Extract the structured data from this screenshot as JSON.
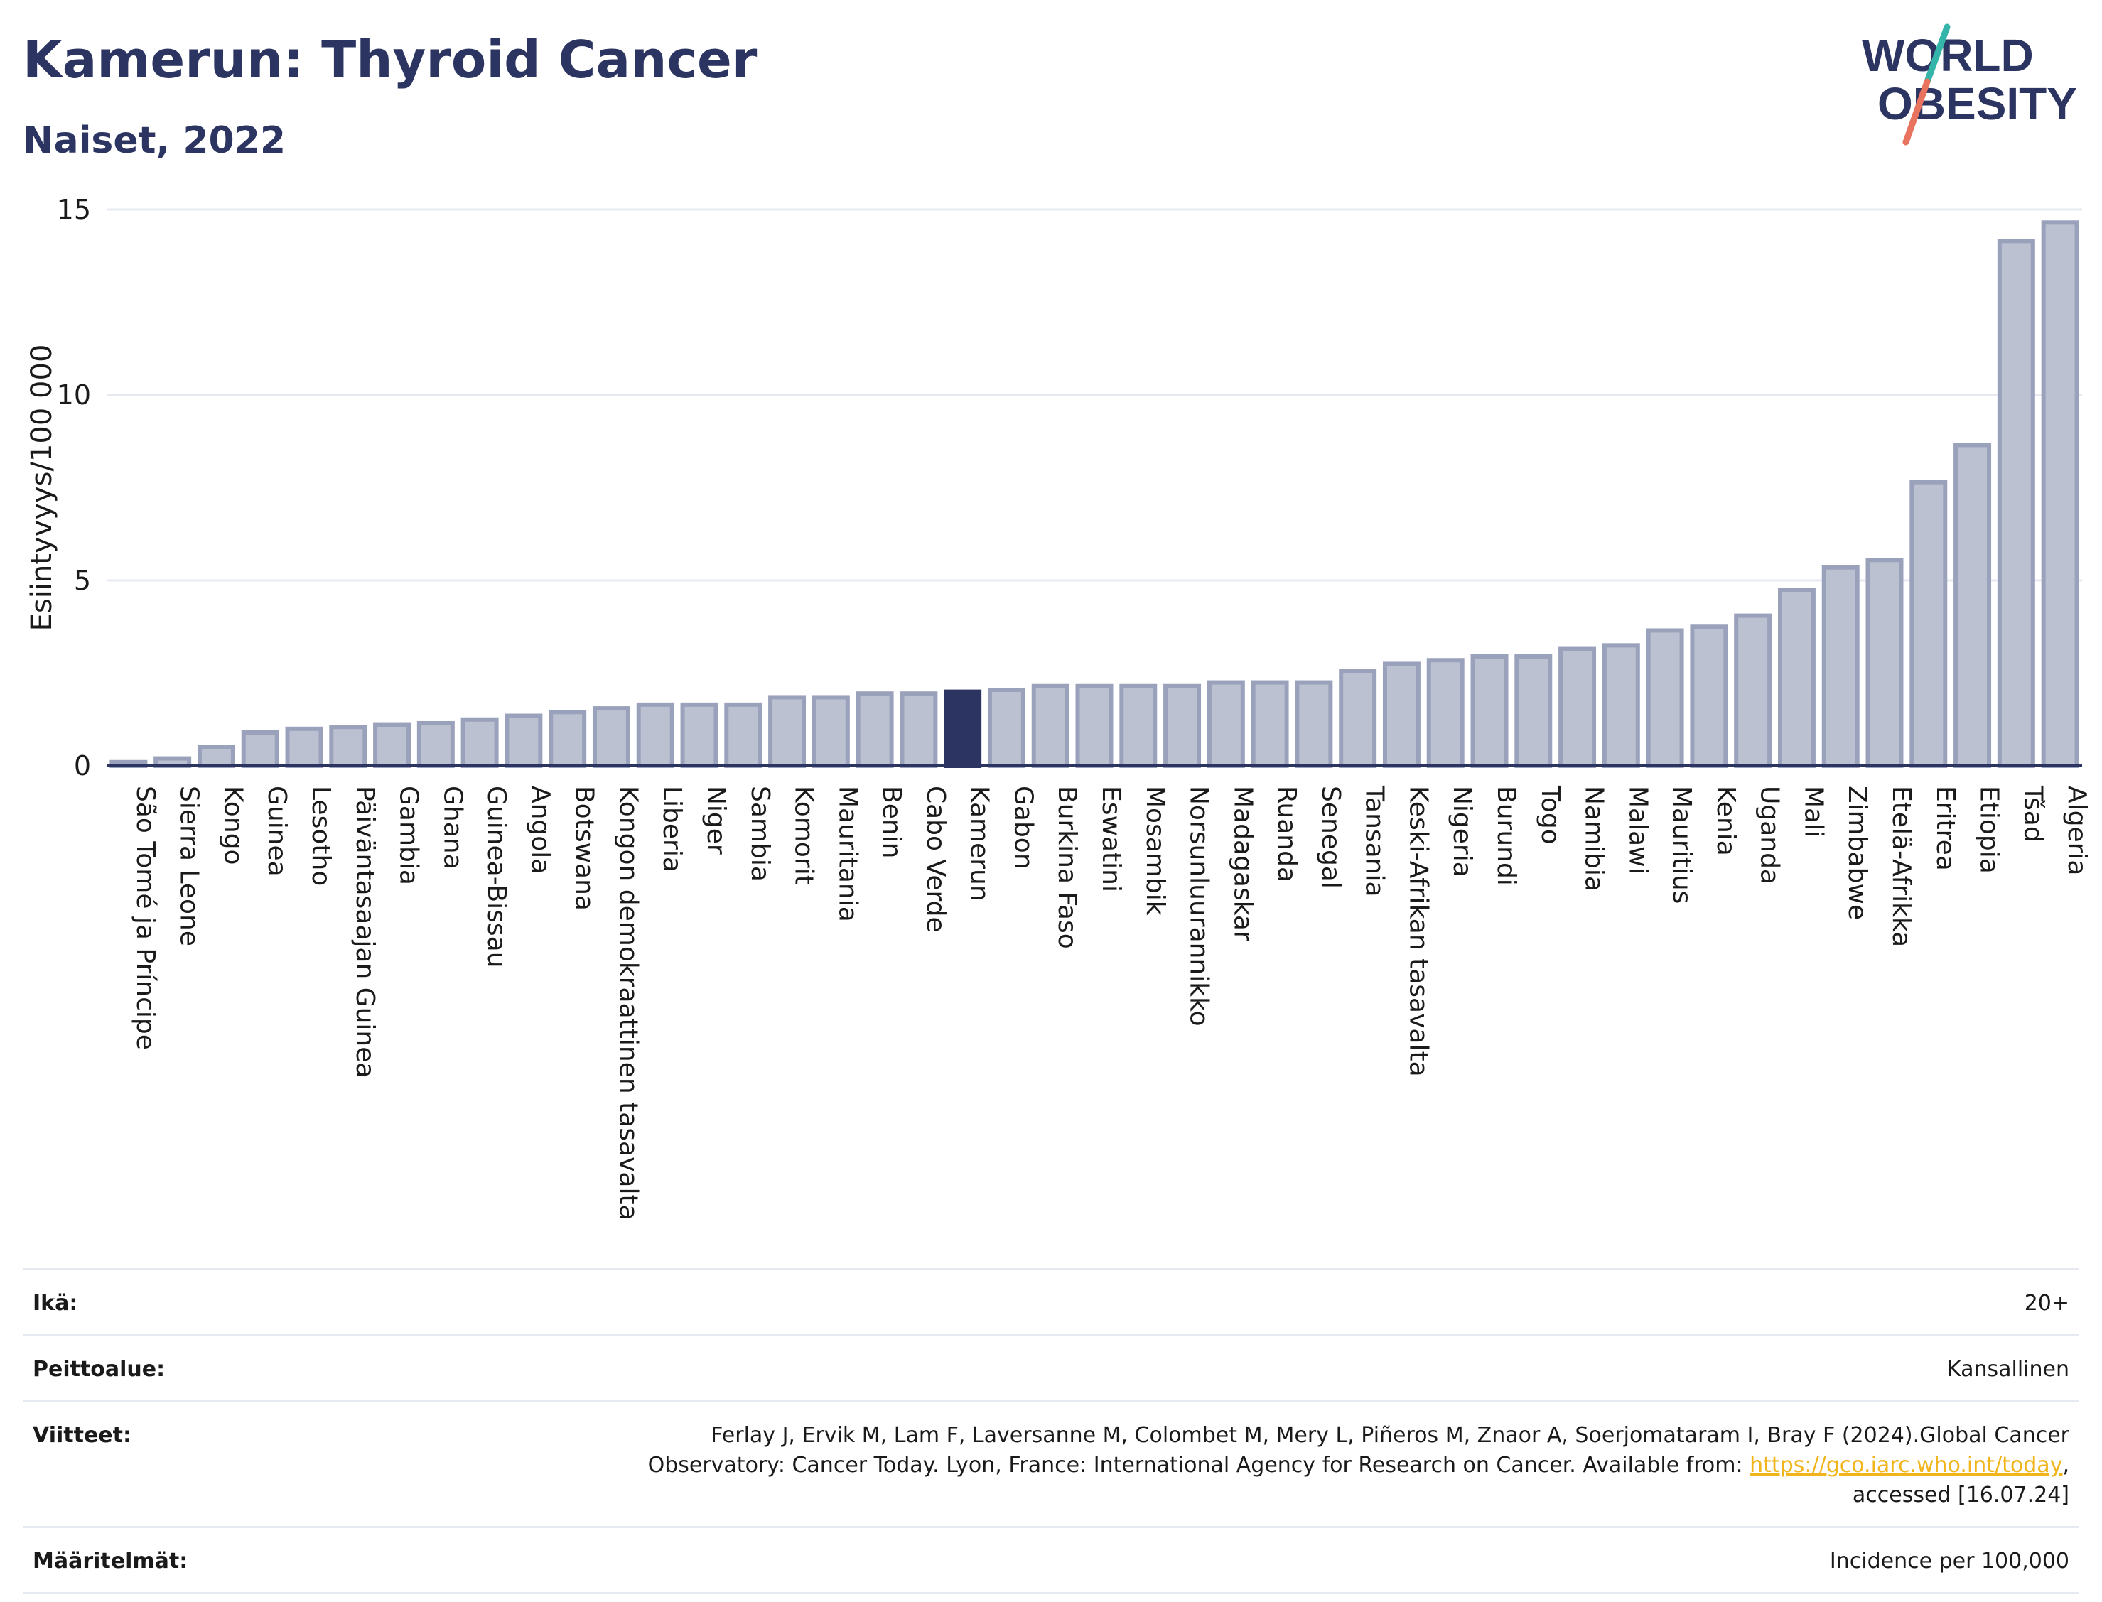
{
  "header": {
    "title": "Kamerun: Thyroid Cancer",
    "subtitle": "Naiset, 2022"
  },
  "logo": {
    "line1": "WORLD",
    "line2": "OBESITY",
    "colors": {
      "text": "#2c3561",
      "slash_top": "#35b5a9",
      "slash_bottom": "#e8735f"
    }
  },
  "chart_data": {
    "type": "bar",
    "title": "Kamerun: Thyroid Cancer",
    "subtitle": "Naiset, 2022",
    "ylabel": "Esiintyvyys/100 000",
    "xlabel": "",
    "ylim": [
      0,
      15
    ],
    "yticks": [
      0,
      5,
      10,
      15
    ],
    "grid": true,
    "highlight": "Kamerun",
    "colors": {
      "bar_fill": "#bcc1d1",
      "bar_stroke": "#9aa1bb",
      "highlight_fill": "#2c3561",
      "grid": "#e6e9f1",
      "axis": "#2c3561"
    },
    "categories": [
      "São Tomé ja Príncipe",
      "Sierra Leone",
      "Kongo",
      "Guinea",
      "Lesotho",
      "Päiväntasaajan Guinea",
      "Gambia",
      "Ghana",
      "Guinea-Bissau",
      "Angola",
      "Botswana",
      "Kongon demokraattinen tasavalta",
      "Liberia",
      "Niger",
      "Sambia",
      "Komorit",
      "Mauritania",
      "Benin",
      "Cabo Verde",
      "Kamerun",
      "Gabon",
      "Burkina Faso",
      "Eswatini",
      "Mosambik",
      "Norsunluurannikko",
      "Madagaskar",
      "Ruanda",
      "Senegal",
      "Tansania",
      "Keski-Afrikan tasavalta",
      "Nigeria",
      "Burundi",
      "Togo",
      "Namibia",
      "Malawi",
      "Mauritius",
      "Kenia",
      "Uganda",
      "Mali",
      "Zimbabwe",
      "Etelä-Afrikka",
      "Eritrea",
      "Etiopia",
      "Tšad",
      "Algeria"
    ],
    "values": [
      0.1,
      0.2,
      0.5,
      0.9,
      1.0,
      1.05,
      1.1,
      1.15,
      1.25,
      1.35,
      1.45,
      1.55,
      1.65,
      1.65,
      1.65,
      1.85,
      1.85,
      1.95,
      1.95,
      2.0,
      2.05,
      2.15,
      2.15,
      2.15,
      2.15,
      2.25,
      2.25,
      2.25,
      2.55,
      2.75,
      2.85,
      2.95,
      2.95,
      3.15,
      3.25,
      3.65,
      3.75,
      4.05,
      4.75,
      5.35,
      5.55,
      7.65,
      8.65,
      14.15,
      14.65
    ]
  },
  "info": {
    "rows": [
      {
        "label": "Ikä:",
        "value": "20+"
      },
      {
        "label": "Peittoalue:",
        "value": "Kansallinen"
      },
      {
        "label": "Viitteet:",
        "value_line1": "Ferlay J, Ervik M, Lam F, Laversanne M, Colombet M, Mery L, Piñeros M, Znaor A, Soerjomataram I, Bray F (2024).Global Cancer",
        "value_line2_pre": "Observatory: Cancer Today. Lyon, France: International Agency for Research on Cancer. Available from: ",
        "link": "https://gco.iarc.who.int/today",
        "value_line2_post": ",",
        "value_line3": "accessed [16.07.24]"
      },
      {
        "label": "Määritelmät:",
        "value": "Incidence per 100,000"
      }
    ]
  }
}
